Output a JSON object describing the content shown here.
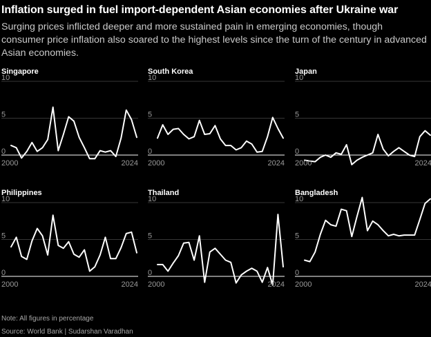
{
  "title": "Inflation surged in fuel import-dependent Asian economies after Ukraine war",
  "subtitle": "Surging prices inflicted deeper and more sustained pain in emerging economies, though consumer price inflation also soared to the highest levels since the turn of the century in advanced Asian economies.",
  "footer": {
    "note": "Note: All figures in percentage",
    "source": "Source: World Bank | Sudarshan Varadhan"
  },
  "colors": {
    "background": "#000000",
    "line": "#ffffff",
    "grid": "#6e6e6e",
    "tick": "#9a9a9a"
  },
  "chart_data": [
    {
      "type": "line",
      "title": "Singapore",
      "x_start_label": "2000",
      "x_end_label": "2024",
      "yticks": [
        "10",
        "5",
        "0"
      ],
      "ylim": [
        0,
        10
      ],
      "xlim": [
        2000,
        2024
      ],
      "x": [
        2000,
        2001,
        2002,
        2003,
        2004,
        2005,
        2006,
        2007,
        2008,
        2009,
        2010,
        2011,
        2012,
        2013,
        2014,
        2015,
        2016,
        2017,
        2018,
        2019,
        2020,
        2021,
        2022,
        2023,
        2024
      ],
      "values": [
        1.3,
        1.0,
        -0.4,
        0.5,
        1.7,
        0.5,
        1.0,
        2.1,
        6.5,
        0.6,
        2.8,
        5.2,
        4.6,
        2.4,
        1.0,
        -0.5,
        -0.5,
        0.6,
        0.4,
        0.6,
        -0.2,
        2.3,
        6.1,
        4.8,
        2.4
      ]
    },
    {
      "type": "line",
      "title": "South Korea",
      "x_start_label": "2000",
      "x_end_label": "2024",
      "yticks": [
        "10",
        "5",
        "0"
      ],
      "ylim": [
        0,
        10
      ],
      "xlim": [
        2000,
        2024
      ],
      "x": [
        2000,
        2001,
        2002,
        2003,
        2004,
        2005,
        2006,
        2007,
        2008,
        2009,
        2010,
        2011,
        2012,
        2013,
        2014,
        2015,
        2016,
        2017,
        2018,
        2019,
        2020,
        2021,
        2022,
        2023,
        2024
      ],
      "values": [
        2.3,
        4.1,
        2.8,
        3.5,
        3.6,
        2.8,
        2.2,
        2.5,
        4.7,
        2.8,
        2.9,
        4.0,
        2.2,
        1.3,
        1.3,
        0.7,
        1.0,
        1.9,
        1.5,
        0.4,
        0.5,
        2.5,
        5.1,
        3.6,
        2.3
      ]
    },
    {
      "type": "line",
      "title": "Japan",
      "x_start_label": "2000",
      "x_end_label": "2024",
      "yticks": [
        "10",
        "5",
        "0"
      ],
      "ylim": [
        0,
        10
      ],
      "xlim": [
        2000,
        2024
      ],
      "x": [
        2000,
        2001,
        2002,
        2003,
        2004,
        2005,
        2006,
        2007,
        2008,
        2009,
        2010,
        2011,
        2012,
        2013,
        2014,
        2015,
        2016,
        2017,
        2018,
        2019,
        2020,
        2021,
        2022,
        2023,
        2024
      ],
      "values": [
        -0.7,
        -0.8,
        -0.9,
        -0.3,
        0.0,
        -0.3,
        0.3,
        0.1,
        1.4,
        -1.3,
        -0.7,
        -0.3,
        0.0,
        0.3,
        2.8,
        0.8,
        -0.1,
        0.5,
        1.0,
        0.5,
        0.0,
        -0.2,
        2.5,
        3.3,
        2.7
      ]
    },
    {
      "type": "line",
      "title": "Philippines",
      "x_start_label": "2000",
      "x_end_label": "2024",
      "yticks": [
        "10",
        "5",
        "0"
      ],
      "ylim": [
        0,
        10
      ],
      "xlim": [
        2000,
        2024
      ],
      "x": [
        2000,
        2001,
        2002,
        2003,
        2004,
        2005,
        2006,
        2007,
        2008,
        2009,
        2010,
        2011,
        2012,
        2013,
        2014,
        2015,
        2016,
        2017,
        2018,
        2019,
        2020,
        2021,
        2022,
        2023,
        2024
      ],
      "values": [
        4.0,
        5.3,
        2.7,
        2.3,
        4.8,
        6.5,
        5.5,
        2.9,
        8.3,
        4.2,
        3.8,
        4.7,
        3.0,
        2.6,
        3.6,
        0.7,
        1.3,
        2.9,
        5.3,
        2.4,
        2.4,
        3.9,
        5.8,
        6.0,
        3.2
      ]
    },
    {
      "type": "line",
      "title": "Thailand",
      "x_start_label": "2000",
      "x_end_label": "2024",
      "yticks": [
        "10",
        "5",
        "0"
      ],
      "ylim": [
        0,
        10
      ],
      "xlim": [
        2000,
        2024
      ],
      "x": [
        2000,
        2001,
        2002,
        2003,
        2004,
        2005,
        2006,
        2007,
        2008,
        2009,
        2010,
        2011,
        2012,
        2013,
        2014,
        2015,
        2016,
        2017,
        2018,
        2019,
        2020,
        2021,
        2022,
        2023,
        2024
      ],
      "values": [
        1.6,
        1.6,
        0.7,
        1.8,
        2.8,
        4.5,
        4.6,
        2.2,
        5.5,
        -0.8,
        3.3,
        3.8,
        3.0,
        2.2,
        1.9,
        -0.9,
        0.2,
        0.7,
        1.1,
        0.7,
        -0.8,
        1.2,
        -1.2,
        8.4,
        1.3
      ]
    },
    {
      "type": "line",
      "title": "Bangladesh",
      "x_start_label": "2000",
      "x_end_label": "2024",
      "yticks": [
        "10",
        "5",
        "0"
      ],
      "ylim": [
        0,
        10
      ],
      "xlim": [
        2000,
        2024
      ],
      "x": [
        2000,
        2001,
        2002,
        2003,
        2004,
        2005,
        2006,
        2007,
        2008,
        2009,
        2010,
        2011,
        2012,
        2013,
        2014,
        2015,
        2016,
        2017,
        2018,
        2019,
        2020,
        2021,
        2022,
        2023,
        2024
      ],
      "values": [
        2.2,
        2.0,
        3.3,
        5.7,
        7.6,
        7.0,
        6.8,
        9.1,
        8.9,
        5.4,
        8.1,
        10.7,
        6.2,
        7.5,
        7.0,
        6.2,
        5.5,
        5.7,
        5.5,
        5.6,
        5.6,
        5.6,
        7.7,
        9.9,
        10.5
      ]
    }
  ]
}
